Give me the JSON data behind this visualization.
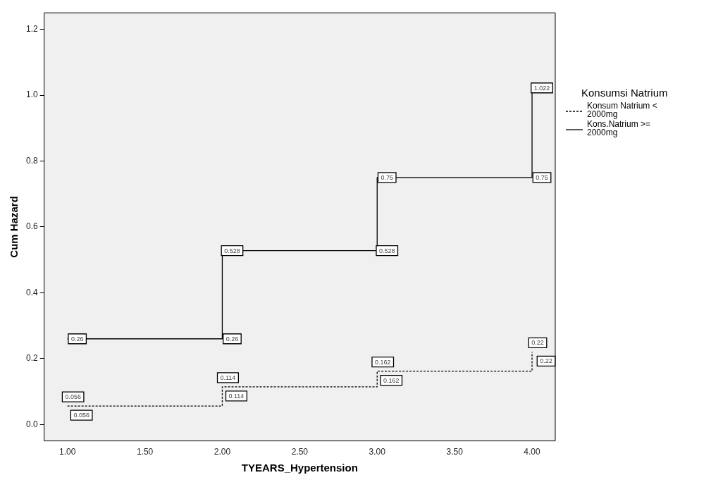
{
  "chart_data": {
    "type": "line",
    "xlabel": "TYEARS_Hypertension",
    "ylabel": "Cum Hazard",
    "legend_title": "Konsumsi Natrium",
    "legend": "right",
    "marker": "none",
    "grid": false,
    "xlim": [
      0.85,
      4.15
    ],
    "xticks": [
      {
        "value": 1,
        "label": "1.00"
      },
      {
        "value": 1.5,
        "label": "1.50"
      },
      {
        "value": 2,
        "label": "2.00"
      },
      {
        "value": 2.5,
        "label": "2.50"
      },
      {
        "value": 3,
        "label": "3.00"
      },
      {
        "value": 3.5,
        "label": "3.50"
      },
      {
        "value": 4,
        "label": "4.00"
      }
    ],
    "ylim": [
      -0.05,
      1.25
    ],
    "yticks": [
      {
        "value": 0,
        "label": "0.0"
      },
      {
        "value": 0.2,
        "label": "0.2"
      },
      {
        "value": 0.4,
        "label": "0.4"
      },
      {
        "value": 0.6,
        "label": "0.6"
      },
      {
        "value": 0.8,
        "label": "0.8"
      },
      {
        "value": 1,
        "label": "1.0"
      },
      {
        "value": 1.2,
        "label": "1.2"
      }
    ],
    "series": [
      {
        "name": "Konsum Natrium < 2000mg",
        "color": "#000000",
        "line_style": "dashed",
        "x": [
          1,
          1,
          2,
          2,
          2,
          3,
          3,
          3,
          4,
          4,
          4
        ],
        "values": [
          0.056,
          0.056,
          0.056,
          0.114,
          0.114,
          0.114,
          0.162,
          0.162,
          0.162,
          0.22,
          0.22
        ],
        "value_labels": [
          "0.056",
          "0.056",
          null,
          "0.114",
          "0.114",
          null,
          "0.162",
          "0.162",
          null,
          "0.22",
          "0.22"
        ]
      },
      {
        "name": "Kons.Natrium >= 2000mg",
        "color": "#000000",
        "line_style": "solid",
        "x": [
          1,
          2,
          2,
          3,
          3,
          4,
          4
        ],
        "values": [
          0.26,
          0.26,
          0.528,
          0.528,
          0.75,
          0.75,
          1.022
        ],
        "value_labels": [
          "0.26",
          "0.26",
          "0.528",
          "0.528",
          "0.75",
          "0.75",
          "1.022"
        ]
      }
    ]
  }
}
